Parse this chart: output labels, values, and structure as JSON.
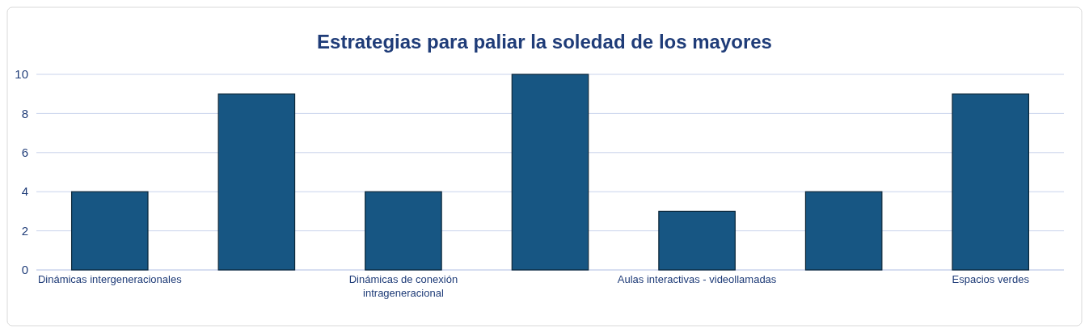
{
  "chart_data": {
    "type": "bar",
    "title": "Estrategias para paliar la soledad de los mayores",
    "categories": [
      "Dinámicas intergeneracionales",
      null,
      "Dinámicas de conexión intrageneracional",
      null,
      "Aulas interactivas - videollamadas",
      null,
      "Espacios verdes"
    ],
    "values": [
      4,
      9,
      4,
      10,
      3,
      4,
      9
    ],
    "color": "#175683",
    "ylim": [
      0,
      10
    ],
    "yticks": [
      0,
      2,
      4,
      6,
      8,
      10
    ],
    "grid": "y"
  }
}
